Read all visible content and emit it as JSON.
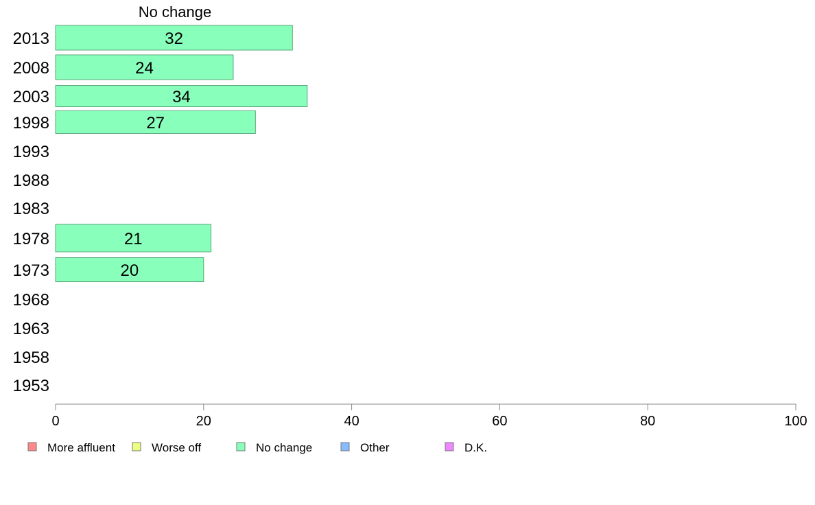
{
  "chart_data": {
    "type": "bar",
    "orientation": "horizontal",
    "title": "No change",
    "categories": [
      "2013",
      "2008",
      "2003",
      "1998",
      "1993",
      "1988",
      "1983",
      "1978",
      "1973",
      "1968",
      "1963",
      "1958",
      "1953"
    ],
    "series": [
      {
        "name": "No change",
        "values": [
          32,
          24,
          34,
          27,
          null,
          null,
          null,
          21,
          20,
          null,
          null,
          null,
          null
        ]
      }
    ],
    "data_labels": [
      "32",
      "24",
      "34",
      "27",
      "",
      "",
      "",
      "21",
      "20",
      "",
      "",
      "",
      ""
    ],
    "xlim": [
      0,
      100
    ],
    "xticks": [
      "0",
      "20",
      "40",
      "60",
      "80",
      "100"
    ],
    "grid": false,
    "legend": {
      "placement": "bottom",
      "entries": [
        {
          "label": "More affluent",
          "color": "#ff8a8a"
        },
        {
          "label": "Worse off",
          "color": "#eeff80"
        },
        {
          "label": "No change",
          "color": "#88ffbb"
        },
        {
          "label": "Other",
          "color": "#88bbff"
        },
        {
          "label": "D.K.",
          "color": "#ee88ff"
        }
      ]
    },
    "bar_color": "#88ffbb",
    "bar_stroke": "#5aa87a"
  }
}
